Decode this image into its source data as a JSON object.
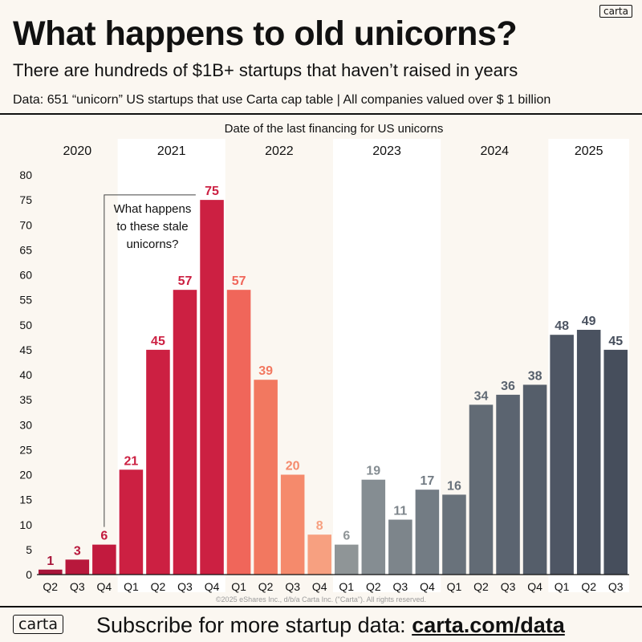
{
  "header": {
    "logo": "carta",
    "title": "What happens to old unicorns?",
    "subtitle": "There are hundreds of $1B+ startups that haven’t raised in years",
    "note": "Data: 651 “unicorn” US startups that use Carta cap table | All companies valued over $ 1 billion"
  },
  "chart_data": {
    "type": "bar",
    "title": "Date of the last financing for US unicorns",
    "years": [
      {
        "label": "2020",
        "quarters": 3,
        "shaded": false
      },
      {
        "label": "2021",
        "quarters": 4,
        "shaded": true
      },
      {
        "label": "2022",
        "quarters": 4,
        "shaded": false
      },
      {
        "label": "2023",
        "quarters": 4,
        "shaded": true
      },
      {
        "label": "2024",
        "quarters": 4,
        "shaded": false
      },
      {
        "label": "2025",
        "quarters": 3,
        "shaded": true
      }
    ],
    "categories": [
      "Q2",
      "Q3",
      "Q4",
      "Q1",
      "Q2",
      "Q3",
      "Q4",
      "Q1",
      "Q2",
      "Q3",
      "Q4",
      "Q1",
      "Q2",
      "Q3",
      "Q4",
      "Q1",
      "Q2",
      "Q3",
      "Q4",
      "Q1",
      "Q2",
      "Q3"
    ],
    "values": [
      1,
      3,
      6,
      21,
      45,
      57,
      75,
      57,
      39,
      20,
      8,
      6,
      19,
      11,
      17,
      16,
      34,
      36,
      38,
      48,
      49,
      45
    ],
    "colors": [
      "#a8153a",
      "#b8183c",
      "#c21a3e",
      "#cc2042",
      "#cc2042",
      "#cc2042",
      "#cc2042",
      "#f0665a",
      "#f27860",
      "#f58a6c",
      "#f7a080",
      "#8f9597",
      "#858d92",
      "#7d858b",
      "#737c84",
      "#69727b",
      "#626b75",
      "#5b6470",
      "#555e6a",
      "#4e5664",
      "#4a5260",
      "#464e5c"
    ],
    "ylim": [
      0,
      80
    ],
    "yticks": [
      0,
      5,
      10,
      15,
      20,
      25,
      30,
      35,
      40,
      45,
      50,
      55,
      60,
      65,
      70,
      75,
      80
    ],
    "annotation": "What happens to these stale unicorns?",
    "annotation_lines": [
      "What happens",
      "to these stale",
      "unicorns?"
    ],
    "copyright": "©2025 eShares Inc., d/b/a Carta Inc. (\"Carta\"). All rights reserved.",
    "grid": false,
    "legend": "none"
  },
  "footer": {
    "logo": "carta",
    "text": "Subscribe for more startup data: ",
    "link": "carta.com/data"
  }
}
